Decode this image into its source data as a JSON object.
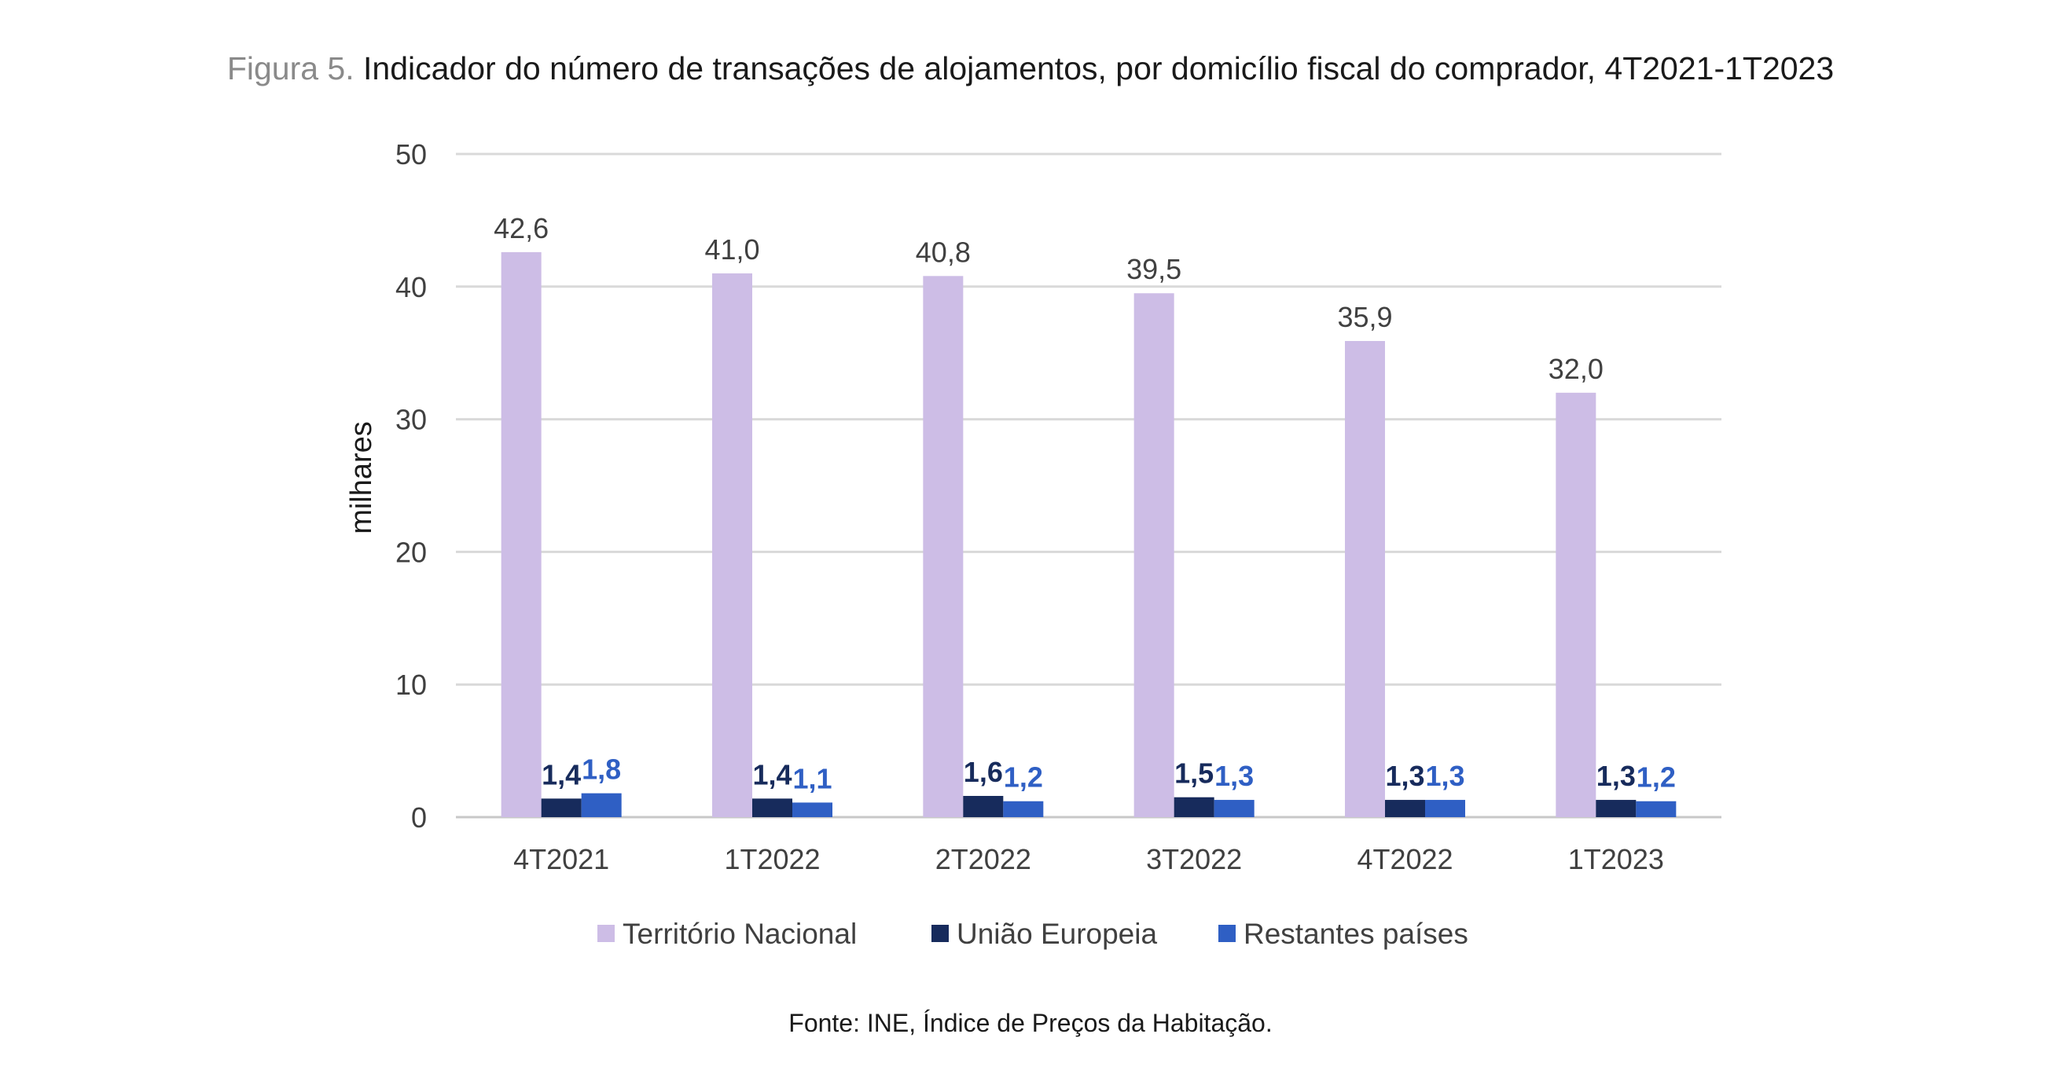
{
  "figure": {
    "prefix": "Figura 5.",
    "title": "Indicador do número de transações de alojamentos, por domicílio fiscal do comprador, 4T2021-1T2023"
  },
  "source": {
    "label": "Fonte:",
    "text": "INE, Índice de Preços da Habitação."
  },
  "chart_data": {
    "type": "bar",
    "title": "Indicador do número de transações de alojamentos, por domicílio fiscal do comprador, 4T2021-1T2023",
    "xlabel": "",
    "ylabel": "milhares",
    "ylim": [
      0,
      50
    ],
    "yticks": [
      0,
      10,
      20,
      30,
      40,
      50
    ],
    "grid": true,
    "legend_position": "bottom",
    "categories": [
      "4T2021",
      "1T2022",
      "2T2022",
      "3T2022",
      "4T2022",
      "1T2023"
    ],
    "series": [
      {
        "name": "Território Nacional",
        "color": "#cdbde6",
        "label_color": "#404040",
        "label_bold": false,
        "values": [
          42.6,
          41.0,
          40.8,
          39.5,
          35.9,
          32.0
        ],
        "labels": [
          "42,6",
          "41,0",
          "40,8",
          "39,5",
          "35,9",
          "32,0"
        ]
      },
      {
        "name": "União Europeia",
        "color": "#172b5c",
        "label_color": "#172b5c",
        "label_bold": true,
        "values": [
          1.4,
          1.4,
          1.6,
          1.5,
          1.3,
          1.3
        ],
        "labels": [
          "1,4",
          "1,4",
          "1,6",
          "1,5",
          "1,3",
          "1,3"
        ]
      },
      {
        "name": "Restantes países",
        "color": "#2f5fc4",
        "label_color": "#2f5fc4",
        "label_bold": true,
        "values": [
          1.8,
          1.1,
          1.2,
          1.3,
          1.3,
          1.2
        ],
        "labels": [
          "1,8",
          "1,1",
          "1,2",
          "1,3",
          "1,3",
          "1,2"
        ]
      }
    ]
  }
}
